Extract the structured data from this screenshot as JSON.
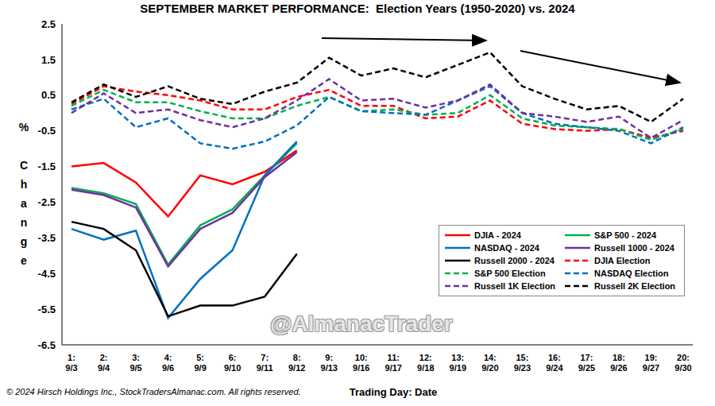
{
  "chart_data": {
    "type": "line",
    "title": "SEPTEMBER MARKET PERFORMANCE:  Election Years (1950-2020) vs. 2024",
    "x_label": "Trading Day: Date",
    "y_label": "% Change",
    "annotations": [
      "@AlmanacTrader",
      "© 2024 Hirsch Holdings Inc., StockTradersAlmanac.com. All rights reserved."
    ],
    "categories": [
      "1:\n9/3",
      "2:\n9/4",
      "3:\n9/5",
      "4:\n9/6",
      "5:\n9/9",
      "6:\n9/10",
      "7:\n9/11",
      "8:\n9/12",
      "9:\n9/13",
      "10:\n9/16",
      "11:\n9/17",
      "12:\n9/18",
      "13:\n9/19",
      "14:\n9/20",
      "15:\n9/23",
      "16:\n9/24",
      "17:\n9/25",
      "18:\n9/26",
      "19:\n9/27",
      "20:\n9/30"
    ],
    "ylim": [
      -6.5,
      2.5
    ],
    "yticks": [
      -6.5,
      -5.5,
      -4.5,
      -3.5,
      -2.5,
      -1.5,
      -0.5,
      0.5,
      1.5,
      2.5
    ],
    "grid": false,
    "legend": "lower right",
    "series": [
      {
        "name": "DJIA - 2024",
        "color": "#ff0000",
        "line_style": "solid",
        "values": [
          -1.5,
          -1.4,
          -1.95,
          -2.9,
          -1.75,
          -2.0,
          -1.65,
          -1.05,
          null,
          null,
          null,
          null,
          null,
          null,
          null,
          null,
          null,
          null,
          null,
          null
        ]
      },
      {
        "name": "S&P 500 - 2024",
        "color": "#00b050",
        "line_style": "solid",
        "values": [
          -2.1,
          -2.25,
          -2.55,
          -4.25,
          -3.15,
          -2.7,
          -1.75,
          -0.85,
          null,
          null,
          null,
          null,
          null,
          null,
          null,
          null,
          null,
          null,
          null,
          null
        ]
      },
      {
        "name": "NASDAQ - 2024",
        "color": "#0070c0",
        "line_style": "solid",
        "values": [
          -3.25,
          -3.55,
          -3.3,
          -5.75,
          -4.65,
          -3.85,
          -1.75,
          -0.8,
          null,
          null,
          null,
          null,
          null,
          null,
          null,
          null,
          null,
          null,
          null,
          null
        ]
      },
      {
        "name": "Russell 1000 - 2024",
        "color": "#7030a0",
        "line_style": "solid",
        "values": [
          -2.15,
          -2.3,
          -2.65,
          -4.3,
          -3.25,
          -2.8,
          -1.8,
          -1.1,
          null,
          null,
          null,
          null,
          null,
          null,
          null,
          null,
          null,
          null,
          null,
          null
        ]
      },
      {
        "name": "Russell 2000 - 2024",
        "color": "#000000",
        "line_style": "solid",
        "values": [
          -3.05,
          -3.25,
          -3.85,
          -5.7,
          -5.4,
          -5.4,
          -5.15,
          -3.95,
          null,
          null,
          null,
          null,
          null,
          null,
          null,
          null,
          null,
          null,
          null,
          null
        ]
      },
      {
        "name": "DJIA Election",
        "color": "#ff0000",
        "line_style": "dashed",
        "values": [
          0.25,
          0.75,
          0.6,
          0.5,
          0.35,
          0.1,
          0.1,
          0.45,
          0.65,
          0.2,
          0.2,
          -0.15,
          -0.1,
          0.35,
          -0.3,
          -0.45,
          -0.5,
          -0.45,
          -0.7,
          -0.5
        ]
      },
      {
        "name": "S&P 500 Election",
        "color": "#00b050",
        "line_style": "dashed",
        "values": [
          0.2,
          0.65,
          0.3,
          0.3,
          0.05,
          -0.15,
          -0.15,
          0.2,
          0.45,
          0.05,
          0.1,
          -0.05,
          0.0,
          0.5,
          -0.15,
          -0.35,
          -0.4,
          -0.45,
          -0.75,
          -0.45
        ]
      },
      {
        "name": "NASDAQ Election",
        "color": "#0070c0",
        "line_style": "dashed",
        "values": [
          0.1,
          0.4,
          -0.4,
          -0.15,
          -0.85,
          -1.0,
          -0.8,
          -0.35,
          0.45,
          0.05,
          0.0,
          -0.05,
          0.35,
          0.75,
          0.0,
          -0.3,
          -0.4,
          -0.5,
          -0.85,
          -0.4
        ]
      },
      {
        "name": "Russell 1K Election",
        "color": "#7030a0",
        "line_style": "dashed",
        "values": [
          0.0,
          0.55,
          0.0,
          0.1,
          -0.2,
          -0.4,
          -0.15,
          0.35,
          0.95,
          0.35,
          0.4,
          0.15,
          0.35,
          0.8,
          0.0,
          -0.1,
          -0.25,
          -0.1,
          -0.7,
          -0.2
        ]
      },
      {
        "name": "Russell 2K Election",
        "color": "#000000",
        "line_style": "dashed",
        "values": [
          0.3,
          0.8,
          0.45,
          0.75,
          0.4,
          0.25,
          0.6,
          0.85,
          1.55,
          1.05,
          1.25,
          1.0,
          1.35,
          1.7,
          0.75,
          0.4,
          0.1,
          0.2,
          -0.25,
          0.4
        ]
      }
    ]
  }
}
